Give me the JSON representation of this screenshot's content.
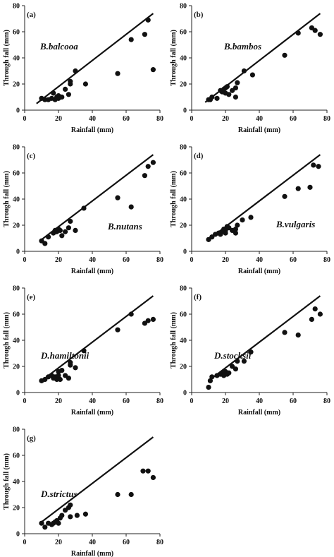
{
  "chart_data": [
    {
      "type": "scatter",
      "panel_label": "(a)",
      "species": "B.balcooa",
      "xlabel": "Rainfall (mm)",
      "ylabel": "Through fall (mm)",
      "xlim": [
        0,
        80
      ],
      "ylim": [
        0,
        80
      ],
      "xticks": [
        "0",
        "20",
        "40",
        "60",
        "80"
      ],
      "yticks": [
        "0",
        "20",
        "40",
        "60",
        "80"
      ],
      "line": {
        "x": [
          7,
          76
        ],
        "y": [
          5,
          74
        ]
      },
      "points": [
        [
          10,
          9
        ],
        [
          12,
          8
        ],
        [
          14,
          8
        ],
        [
          16,
          9
        ],
        [
          17,
          13
        ],
        [
          18,
          8
        ],
        [
          19,
          10
        ],
        [
          20,
          11
        ],
        [
          20,
          9
        ],
        [
          22,
          10
        ],
        [
          24,
          16
        ],
        [
          26,
          12
        ],
        [
          27,
          20
        ],
        [
          27,
          22
        ],
        [
          30,
          30
        ],
        [
          36,
          20
        ],
        [
          55,
          28
        ],
        [
          63,
          54
        ],
        [
          71,
          58
        ],
        [
          73,
          69
        ],
        [
          76,
          31
        ]
      ]
    },
    {
      "type": "scatter",
      "panel_label": "(b)",
      "species": "B.bambos",
      "xlabel": "Rainfall (mm)",
      "ylabel": "Through fall (mm)",
      "xlim": [
        0,
        80
      ],
      "ylim": [
        0,
        80
      ],
      "xticks": [
        "0",
        "20",
        "40",
        "60",
        "80"
      ],
      "yticks": [
        "0",
        "20",
        "40",
        "60",
        "80"
      ],
      "line": {
        "x": [
          8,
          76
        ],
        "y": [
          6,
          74
        ]
      },
      "points": [
        [
          10,
          8
        ],
        [
          11,
          8
        ],
        [
          12,
          10
        ],
        [
          15,
          9
        ],
        [
          17,
          15
        ],
        [
          18,
          14
        ],
        [
          19,
          16
        ],
        [
          20,
          17
        ],
        [
          20,
          13
        ],
        [
          21,
          18
        ],
        [
          22,
          12
        ],
        [
          24,
          15
        ],
        [
          26,
          17
        ],
        [
          26,
          10
        ],
        [
          27,
          21
        ],
        [
          31,
          30
        ],
        [
          36,
          27
        ],
        [
          55,
          42
        ],
        [
          63,
          59
        ],
        [
          71,
          63
        ],
        [
          73,
          61
        ],
        [
          76,
          58
        ]
      ]
    },
    {
      "type": "scatter",
      "panel_label": "(c)",
      "species": "B.nutans",
      "xlabel": "Rainfall (mm)",
      "ylabel": "Through fall (mm)",
      "xlim": [
        0,
        80
      ],
      "ylim": [
        0,
        80
      ],
      "xticks": [
        "0",
        "20",
        "40",
        "60",
        "80"
      ],
      "yticks": [
        "0",
        "20",
        "40",
        "60",
        "80"
      ],
      "line": {
        "x": [
          10,
          76
        ],
        "y": [
          9,
          74
        ]
      },
      "points": [
        [
          10,
          8
        ],
        [
          12,
          6
        ],
        [
          14,
          11
        ],
        [
          17,
          14
        ],
        [
          18,
          16
        ],
        [
          19,
          15
        ],
        [
          20,
          17
        ],
        [
          21,
          16
        ],
        [
          22,
          12
        ],
        [
          24,
          15
        ],
        [
          26,
          18
        ],
        [
          27,
          23
        ],
        [
          30,
          16
        ],
        [
          35,
          33
        ],
        [
          55,
          41
        ],
        [
          63,
          34
        ],
        [
          71,
          58
        ],
        [
          73,
          65
        ],
        [
          76,
          68
        ]
      ]
    },
    {
      "type": "scatter",
      "panel_label": "(d)",
      "species": "B.vulgaris",
      "xlabel": "Rainfall (mm)",
      "ylabel": "Through fall (mm)",
      "xlim": [
        0,
        80
      ],
      "ylim": [
        0,
        80
      ],
      "xticks": [
        "0",
        "20",
        "40",
        "60",
        "80"
      ],
      "yticks": [
        "0",
        "20",
        "40",
        "60",
        "80"
      ],
      "line": {
        "x": [
          10,
          76
        ],
        "y": [
          9,
          74
        ]
      },
      "points": [
        [
          10,
          9
        ],
        [
          12,
          11
        ],
        [
          14,
          13
        ],
        [
          16,
          14
        ],
        [
          17,
          13
        ],
        [
          18,
          15
        ],
        [
          19,
          17
        ],
        [
          20,
          16
        ],
        [
          20,
          14
        ],
        [
          21,
          19
        ],
        [
          22,
          18
        ],
        [
          24,
          16
        ],
        [
          26,
          17
        ],
        [
          26,
          14
        ],
        [
          27,
          20
        ],
        [
          30,
          24
        ],
        [
          35,
          26
        ],
        [
          55,
          42
        ],
        [
          63,
          48
        ],
        [
          70,
          49
        ],
        [
          72,
          66
        ],
        [
          75,
          65
        ]
      ]
    },
    {
      "type": "scatter",
      "panel_label": "(e)",
      "species": "D.hamiltonii",
      "xlabel": "Rainfall (mm)",
      "ylabel": "Through fall (mm)",
      "xlim": [
        0,
        80
      ],
      "ylim": [
        0,
        80
      ],
      "xticks": [
        "0",
        "20",
        "40",
        "60",
        "80"
      ],
      "yticks": [
        "0",
        "20",
        "40",
        "60",
        "80"
      ],
      "line": {
        "x": [
          10,
          76
        ],
        "y": [
          9,
          74
        ]
      },
      "points": [
        [
          10,
          9
        ],
        [
          12,
          10
        ],
        [
          14,
          12
        ],
        [
          16,
          13
        ],
        [
          17,
          11
        ],
        [
          18,
          12
        ],
        [
          19,
          10
        ],
        [
          20,
          13
        ],
        [
          20,
          16
        ],
        [
          21,
          10
        ],
        [
          22,
          17
        ],
        [
          24,
          13
        ],
        [
          26,
          11
        ],
        [
          27,
          21
        ],
        [
          27,
          23
        ],
        [
          30,
          19
        ],
        [
          35,
          32
        ],
        [
          55,
          48
        ],
        [
          63,
          60
        ],
        [
          71,
          53
        ],
        [
          73,
          55
        ],
        [
          76,
          56
        ]
      ]
    },
    {
      "type": "scatter",
      "panel_label": "(f)",
      "species": "D.stocksii",
      "xlabel": "Rainfall (mm)",
      "ylabel": "Through fall (mm)",
      "xlim": [
        0,
        80
      ],
      "ylim": [
        0,
        80
      ],
      "xticks": [
        "0",
        "20",
        "40",
        "60",
        "80"
      ],
      "yticks": [
        "0",
        "20",
        "40",
        "60",
        "80"
      ],
      "line": {
        "x": [
          10,
          76
        ],
        "y": [
          9,
          74
        ]
      },
      "points": [
        [
          10,
          4
        ],
        [
          11,
          9
        ],
        [
          12,
          12
        ],
        [
          15,
          13
        ],
        [
          17,
          14
        ],
        [
          18,
          15
        ],
        [
          19,
          13
        ],
        [
          20,
          16
        ],
        [
          21,
          14
        ],
        [
          22,
          15
        ],
        [
          24,
          20
        ],
        [
          26,
          18
        ],
        [
          27,
          24
        ],
        [
          31,
          24
        ],
        [
          35,
          31
        ],
        [
          55,
          46
        ],
        [
          63,
          44
        ],
        [
          71,
          56
        ],
        [
          73,
          64
        ],
        [
          76,
          60
        ]
      ]
    },
    {
      "type": "scatter",
      "panel_label": "(g)",
      "species": "D.strictus",
      "xlabel": "Rainfall (mm)",
      "ylabel": "Through fall (mm)",
      "xlim": [
        0,
        80
      ],
      "ylim": [
        0,
        80
      ],
      "xticks": [
        "0",
        "20",
        "40",
        "60",
        "80"
      ],
      "yticks": [
        "0",
        "20",
        "40",
        "60",
        "80"
      ],
      "line": {
        "x": [
          10,
          76
        ],
        "y": [
          9,
          74
        ]
      },
      "points": [
        [
          10,
          8
        ],
        [
          12,
          5
        ],
        [
          14,
          8
        ],
        [
          16,
          7
        ],
        [
          17,
          8
        ],
        [
          18,
          9
        ],
        [
          19,
          10
        ],
        [
          20,
          8
        ],
        [
          21,
          12
        ],
        [
          22,
          14
        ],
        [
          24,
          18
        ],
        [
          26,
          20
        ],
        [
          27,
          22
        ],
        [
          27,
          13
        ],
        [
          31,
          14
        ],
        [
          36,
          15
        ],
        [
          55,
          30
        ],
        [
          63,
          30
        ],
        [
          70,
          48
        ],
        [
          73,
          48
        ],
        [
          76,
          43
        ]
      ]
    }
  ]
}
